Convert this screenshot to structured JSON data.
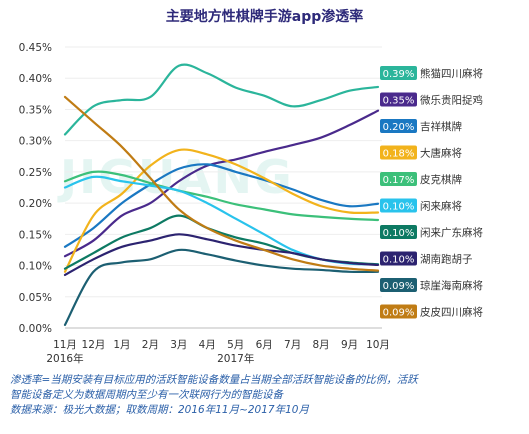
{
  "chart_data": {
    "type": "line",
    "title": "主要地方性棋牌手游app渗透率",
    "x": [
      "11月",
      "12月",
      "1月",
      "2月",
      "3月",
      "4月",
      "5月",
      "6月",
      "7月",
      "8月",
      "9月",
      "10月"
    ],
    "year_labels": [
      {
        "text": "2016年",
        "at_index": 0
      },
      {
        "text": "2017年",
        "at_index": 6
      }
    ],
    "yticks": [
      "0.00%",
      "0.05%",
      "0.10%",
      "0.15%",
      "0.20%",
      "0.25%",
      "0.30%",
      "0.35%",
      "0.40%",
      "0.45%"
    ],
    "ylim": [
      0,
      0.45
    ],
    "series": [
      {
        "name": "熊猫四川麻将",
        "badge": "0.39%",
        "color": "#2bb59b",
        "values": [
          0.31,
          0.355,
          0.365,
          0.37,
          0.42,
          0.408,
          0.385,
          0.372,
          0.355,
          0.365,
          0.38,
          0.386
        ]
      },
      {
        "name": "微乐贵阳捉鸡",
        "badge": "0.35%",
        "color": "#4a2a8c",
        "values": [
          0.115,
          0.14,
          0.18,
          0.2,
          0.235,
          0.26,
          0.27,
          0.282,
          0.293,
          0.305,
          0.325,
          0.348
        ]
      },
      {
        "name": "吉祥棋牌",
        "badge": "0.20%",
        "color": "#1a78c2",
        "values": [
          0.13,
          0.16,
          0.2,
          0.23,
          0.255,
          0.262,
          0.25,
          0.237,
          0.222,
          0.205,
          0.195,
          0.199
        ]
      },
      {
        "name": "大唐麻将",
        "badge": "0.18%",
        "color": "#f2b31c",
        "values": [
          0.09,
          0.18,
          0.215,
          0.26,
          0.285,
          0.278,
          0.262,
          0.24,
          0.215,
          0.195,
          0.185,
          0.185
        ]
      },
      {
        "name": "皮克棋牌",
        "badge": "0.17%",
        "color": "#3cc07a",
        "values": [
          0.235,
          0.25,
          0.245,
          0.232,
          0.22,
          0.21,
          0.198,
          0.19,
          0.182,
          0.178,
          0.175,
          0.173
        ]
      },
      {
        "name": "闲来麻将",
        "badge": "0.10%",
        "color": "#29c3ec",
        "values": [
          0.225,
          0.242,
          0.235,
          0.228,
          0.22,
          0.2,
          0.175,
          0.15,
          0.125,
          0.11,
          0.103,
          0.102
        ]
      },
      {
        "name": "闲来广东麻将",
        "badge": "0.10%",
        "color": "#0d7a63",
        "values": [
          0.095,
          0.12,
          0.145,
          0.16,
          0.18,
          0.16,
          0.145,
          0.135,
          0.12,
          0.11,
          0.105,
          0.102
        ]
      },
      {
        "name": "湖南跑胡子",
        "badge": "0.10%",
        "color": "#2c2370",
        "values": [
          0.085,
          0.11,
          0.13,
          0.14,
          0.15,
          0.142,
          0.132,
          0.125,
          0.12,
          0.11,
          0.104,
          0.101
        ]
      },
      {
        "name": "琼崖海南麻将",
        "badge": "0.09%",
        "color": "#1c5f72",
        "values": [
          0.005,
          0.09,
          0.105,
          0.11,
          0.125,
          0.118,
          0.108,
          0.1,
          0.095,
          0.093,
          0.09,
          0.09
        ]
      },
      {
        "name": "皮皮四川麻将",
        "badge": "0.09%",
        "color": "#c07c14",
        "values": [
          0.37,
          0.33,
          0.29,
          0.24,
          0.19,
          0.16,
          0.14,
          0.125,
          0.11,
          0.1,
          0.095,
          0.092
        ]
      }
    ]
  },
  "notes": {
    "line1": "渗透率=当期安装有目标应用的活跃智能设备数量占当期全部活跃智能设备的比例，活跃",
    "line2": "智能设备定义为数据周期内至少有一次联网行为的智能设备",
    "line3": "数据来源：极光大数据；取数周期：2016年11月~2017年10月"
  },
  "watermark": "JIGUANG"
}
